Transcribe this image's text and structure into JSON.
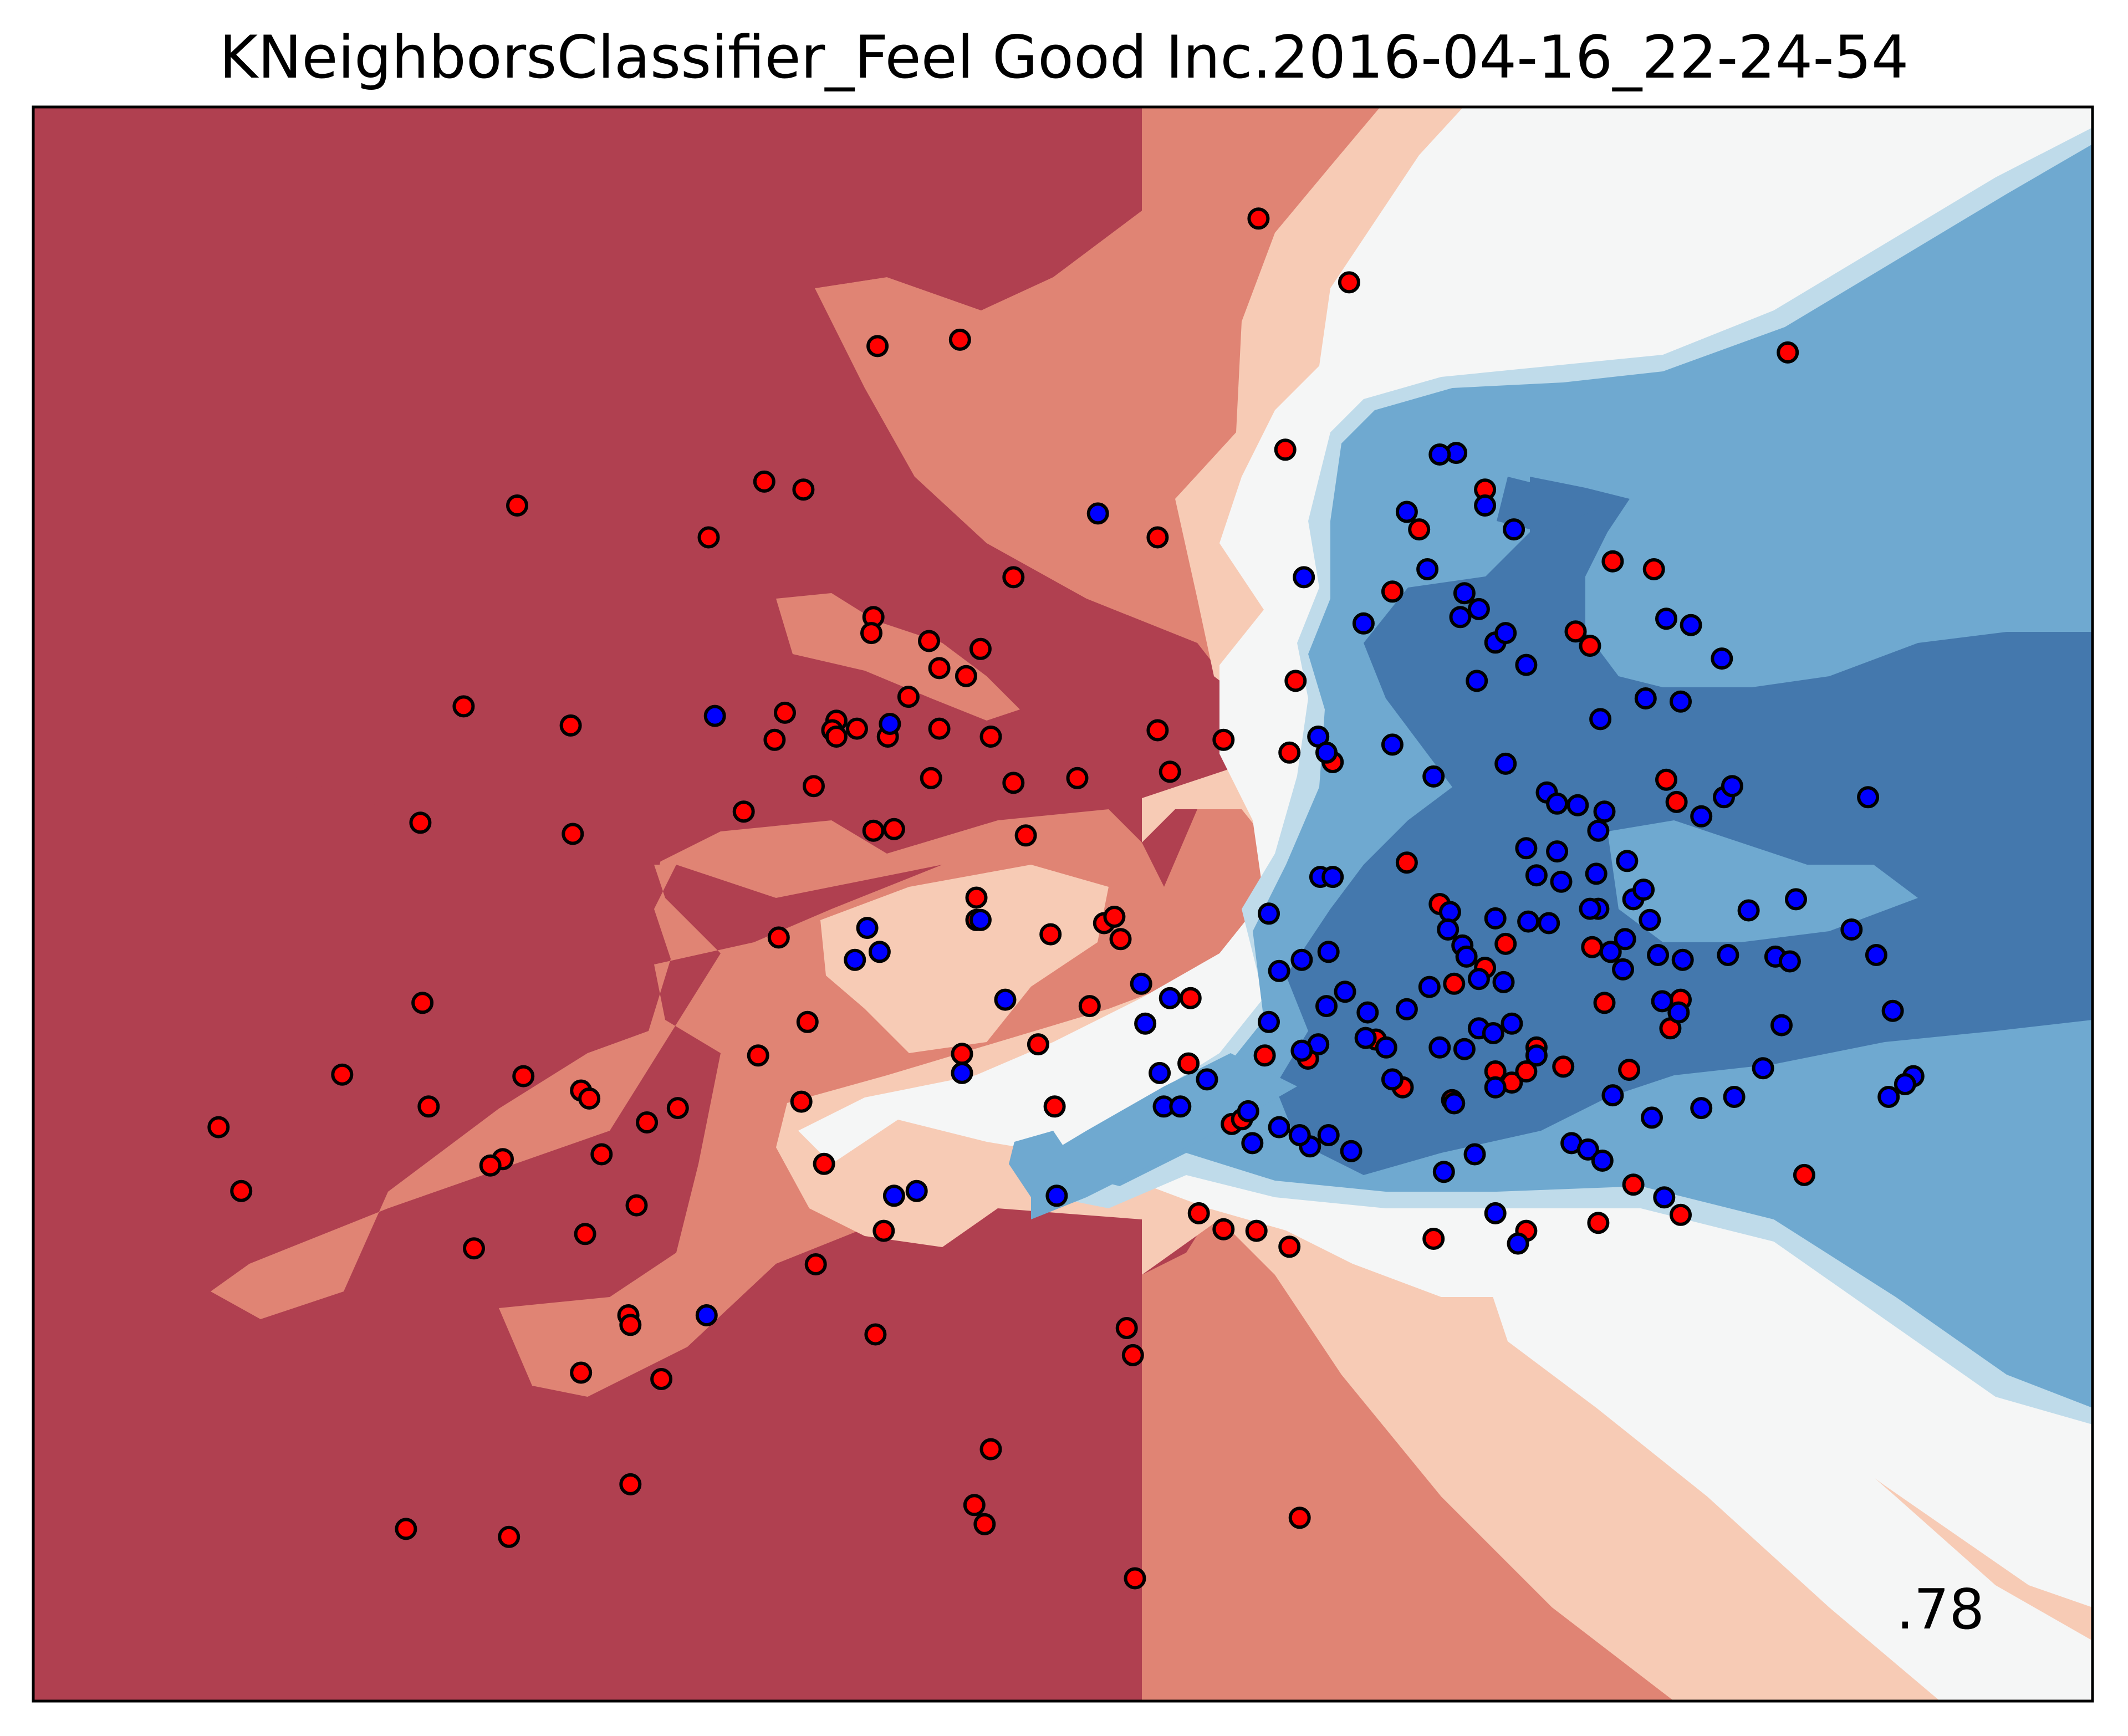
{
  "chart_data": {
    "type": "scatter",
    "title": "KNeighborsClassifier_Feel Good Inc.2016-04-16_22-24-54",
    "xlabel": "",
    "ylabel": "",
    "xlim": [
      0,
      100
    ],
    "ylim": [
      0,
      100
    ],
    "ticks_shown": false,
    "grid": false,
    "annotation": ".78",
    "annotation_position": "bottom-right",
    "colors": {
      "region_dark_red": "#b04050",
      "region_red": "#e08474",
      "region_light_red": "#f7cbb5",
      "region_white": "#f5f6f6",
      "region_light_blue": "#bfdbea",
      "region_mid_blue": "#6fa9d0",
      "region_dark_blue": "#4478ad",
      "point_red": "#ff0000",
      "point_blue": "#0000ff",
      "point_edge": "#000000"
    },
    "series": [
      {
        "color": "red",
        "points": [
          [
            59.5,
            93.0
          ],
          [
            63.9,
            89.0
          ],
          [
            45.0,
            85.4
          ],
          [
            41.0,
            85.0
          ],
          [
            35.5,
            76.5
          ],
          [
            37.4,
            76.0
          ],
          [
            23.5,
            75.0
          ],
          [
            32.8,
            73.0
          ],
          [
            54.6,
            73.0
          ],
          [
            47.6,
            70.5
          ],
          [
            40.8,
            68.0
          ],
          [
            40.7,
            67.0
          ],
          [
            43.5,
            66.5
          ],
          [
            46.0,
            66.0
          ],
          [
            44.0,
            64.8
          ],
          [
            45.3,
            64.3
          ],
          [
            42.5,
            63.0
          ],
          [
            39.0,
            61.5
          ],
          [
            36.5,
            62.0
          ],
          [
            38.8,
            60.9
          ],
          [
            39.0,
            60.5
          ],
          [
            40.0,
            61.0
          ],
          [
            41.5,
            60.5
          ],
          [
            44.0,
            61.0
          ],
          [
            46.5,
            60.5
          ],
          [
            36.0,
            60.3
          ],
          [
            26.1,
            61.2
          ],
          [
            20.9,
            62.4
          ],
          [
            54.6,
            60.9
          ],
          [
            43.6,
            57.9
          ],
          [
            47.6,
            57.6
          ],
          [
            50.7,
            57.9
          ],
          [
            55.2,
            58.3
          ],
          [
            37.9,
            57.4
          ],
          [
            34.5,
            55.8
          ],
          [
            18.8,
            55.1
          ],
          [
            26.2,
            54.4
          ],
          [
            40.8,
            54.6
          ],
          [
            41.8,
            54.7
          ],
          [
            48.2,
            54.3
          ],
          [
            45.8,
            50.4
          ],
          [
            45.8,
            49.0
          ],
          [
            49.4,
            48.1
          ],
          [
            52.0,
            48.8
          ],
          [
            52.5,
            49.2
          ],
          [
            52.8,
            47.8
          ],
          [
            36.2,
            47.9
          ],
          [
            18.9,
            43.8
          ],
          [
            37.6,
            42.6
          ],
          [
            56.2,
            44.1
          ],
          [
            51.3,
            43.6
          ],
          [
            45.1,
            40.6
          ],
          [
            48.8,
            41.2
          ],
          [
            15.0,
            39.3
          ],
          [
            23.8,
            39.2
          ],
          [
            26.6,
            38.3
          ],
          [
            19.2,
            37.3
          ],
          [
            35.2,
            40.5
          ],
          [
            56.1,
            40.0
          ],
          [
            61.9,
            40.3
          ],
          [
            27.0,
            37.8
          ],
          [
            29.8,
            36.3
          ],
          [
            31.3,
            37.2
          ],
          [
            37.3,
            37.6
          ],
          [
            49.6,
            37.3
          ],
          [
            58.2,
            36.2
          ],
          [
            9.0,
            36.0
          ],
          [
            22.8,
            34.0
          ],
          [
            22.2,
            33.6
          ],
          [
            27.6,
            34.3
          ],
          [
            58.7,
            36.5
          ],
          [
            38.4,
            33.7
          ],
          [
            10.1,
            32.0
          ],
          [
            29.3,
            31.1
          ],
          [
            26.8,
            29.3
          ],
          [
            21.4,
            28.4
          ],
          [
            41.3,
            29.5
          ],
          [
            59.4,
            29.5
          ],
          [
            38.0,
            27.4
          ],
          [
            28.9,
            24.2
          ],
          [
            29.0,
            23.6
          ],
          [
            40.9,
            23.0
          ],
          [
            53.1,
            23.4
          ],
          [
            53.4,
            21.7
          ],
          [
            26.6,
            20.6
          ],
          [
            30.5,
            20.2
          ],
          [
            46.5,
            15.8
          ],
          [
            29.0,
            13.6
          ],
          [
            18.1,
            10.8
          ],
          [
            23.1,
            10.3
          ],
          [
            45.7,
            12.3
          ],
          [
            46.2,
            11.1
          ],
          [
            61.5,
            11.5
          ],
          [
            53.5,
            7.7
          ],
          [
            60.8,
            78.5
          ],
          [
            61.3,
            64.0
          ],
          [
            57.8,
            60.3
          ],
          [
            61.0,
            59.5
          ],
          [
            63.1,
            58.9
          ],
          [
            66.7,
            52.6
          ],
          [
            68.3,
            50.0
          ],
          [
            71.5,
            47.5
          ],
          [
            70.5,
            46.0
          ],
          [
            69.0,
            45.0
          ],
          [
            73.0,
            41.0
          ],
          [
            71.0,
            39.5
          ],
          [
            74.3,
            39.8
          ],
          [
            71.8,
            38.8
          ],
          [
            80.0,
            44.0
          ],
          [
            79.3,
            57.8
          ],
          [
            79.8,
            56.4
          ],
          [
            59.8,
            40.5
          ],
          [
            66.5,
            38.5
          ],
          [
            65.2,
            41.5
          ],
          [
            66.0,
            69.6
          ],
          [
            67.3,
            73.5
          ],
          [
            70.5,
            76.0
          ],
          [
            76.7,
            71.5
          ],
          [
            78.7,
            71.0
          ],
          [
            85.2,
            84.6
          ],
          [
            74.9,
            67.1
          ],
          [
            75.6,
            66.2
          ],
          [
            75.7,
            47.3
          ],
          [
            76.3,
            43.8
          ],
          [
            79.5,
            42.2
          ],
          [
            77.5,
            39.6
          ],
          [
            77.7,
            32.4
          ],
          [
            68.9,
            37.7
          ],
          [
            72.5,
            29.5
          ],
          [
            76.0,
            30.0
          ],
          [
            80.0,
            30.5
          ],
          [
            68.0,
            29.0
          ],
          [
            72.5,
            39.5
          ],
          [
            86.0,
            33.0
          ],
          [
            61.0,
            28.5
          ],
          [
            57.8,
            29.6
          ],
          [
            56.6,
            30.6
          ]
        ]
      },
      {
        "color": "blue",
        "points": [
          [
            69.1,
            78.3
          ],
          [
            70.5,
            75.0
          ],
          [
            68.3,
            78.2
          ],
          [
            66.7,
            74.6
          ],
          [
            71.9,
            73.5
          ],
          [
            67.7,
            71.0
          ],
          [
            79.3,
            67.9
          ],
          [
            51.7,
            74.5
          ],
          [
            61.7,
            70.5
          ],
          [
            69.5,
            69.5
          ],
          [
            70.2,
            68.5
          ],
          [
            69.3,
            68.0
          ],
          [
            64.6,
            67.6
          ],
          [
            71.0,
            66.4
          ],
          [
            80.5,
            67.5
          ],
          [
            82.0,
            65.4
          ],
          [
            78.3,
            62.9
          ],
          [
            80.0,
            62.7
          ],
          [
            70.1,
            64.0
          ],
          [
            71.5,
            67.0
          ],
          [
            72.5,
            65.0
          ],
          [
            82.1,
            56.7
          ],
          [
            81.0,
            55.5
          ],
          [
            82.5,
            57.4
          ],
          [
            89.1,
            56.7
          ],
          [
            71.5,
            58.8
          ],
          [
            66.0,
            60.0
          ],
          [
            62.4,
            60.5
          ],
          [
            62.8,
            59.5
          ],
          [
            68.0,
            58.0
          ],
          [
            76.1,
            61.6
          ],
          [
            73.5,
            57.0
          ],
          [
            74.0,
            56.3
          ],
          [
            75.0,
            56.2
          ],
          [
            76.3,
            55.8
          ],
          [
            76.0,
            54.6
          ],
          [
            74.0,
            53.3
          ],
          [
            72.5,
            53.5
          ],
          [
            73.0,
            51.8
          ],
          [
            74.2,
            51.4
          ],
          [
            75.9,
            51.9
          ],
          [
            77.4,
            52.7
          ],
          [
            76.0,
            49.7
          ],
          [
            77.7,
            50.3
          ],
          [
            78.2,
            50.9
          ],
          [
            78.5,
            49.0
          ],
          [
            77.3,
            47.8
          ],
          [
            76.6,
            47.0
          ],
          [
            78.9,
            46.8
          ],
          [
            80.1,
            46.5
          ],
          [
            82.3,
            46.8
          ],
          [
            84.6,
            46.7
          ],
          [
            85.3,
            46.4
          ],
          [
            88.3,
            48.4
          ],
          [
            85.6,
            50.3
          ],
          [
            83.3,
            49.6
          ],
          [
            75.6,
            49.7
          ],
          [
            73.6,
            48.8
          ],
          [
            72.6,
            48.9
          ],
          [
            71.0,
            49.1
          ],
          [
            68.8,
            49.5
          ],
          [
            68.7,
            48.4
          ],
          [
            69.4,
            47.4
          ],
          [
            69.6,
            46.7
          ],
          [
            71.4,
            45.1
          ],
          [
            70.2,
            45.3
          ],
          [
            67.8,
            44.8
          ],
          [
            66.7,
            43.4
          ],
          [
            64.8,
            43.2
          ],
          [
            63.7,
            44.5
          ],
          [
            62.8,
            43.6
          ],
          [
            62.4,
            41.2
          ],
          [
            60.0,
            42.6
          ],
          [
            61.6,
            40.8
          ],
          [
            64.7,
            41.6
          ],
          [
            65.7,
            41.0
          ],
          [
            66.0,
            39.0
          ],
          [
            68.3,
            41.0
          ],
          [
            69.5,
            40.9
          ],
          [
            70.2,
            42.2
          ],
          [
            70.9,
            41.9
          ],
          [
            71.8,
            42.5
          ],
          [
            69.0,
            37.5
          ],
          [
            71.0,
            38.5
          ],
          [
            73.0,
            40.5
          ],
          [
            74.7,
            35.0
          ],
          [
            75.5,
            34.6
          ],
          [
            76.2,
            33.9
          ],
          [
            70.0,
            34.3
          ],
          [
            68.5,
            33.2
          ],
          [
            64.0,
            34.5
          ],
          [
            62.0,
            34.8
          ],
          [
            62.9,
            35.5
          ],
          [
            60.5,
            36.0
          ],
          [
            59.2,
            35.0
          ],
          [
            59.0,
            37.0
          ],
          [
            61.5,
            35.5
          ],
          [
            54.7,
            39.4
          ],
          [
            54.0,
            42.5
          ],
          [
            55.2,
            44.1
          ],
          [
            53.8,
            45.0
          ],
          [
            47.2,
            44.0
          ],
          [
            41.1,
            47.0
          ],
          [
            39.9,
            46.5
          ],
          [
            33.1,
            61.8
          ],
          [
            41.6,
            61.3
          ],
          [
            62.9,
            47.0
          ],
          [
            61.6,
            46.5
          ],
          [
            60.5,
            45.8
          ],
          [
            54.9,
            37.3
          ],
          [
            55.7,
            37.3
          ],
          [
            77.2,
            45.9
          ],
          [
            79.9,
            43.2
          ],
          [
            79.1,
            43.9
          ],
          [
            84.9,
            42.4
          ],
          [
            89.5,
            46.8
          ],
          [
            90.3,
            43.3
          ],
          [
            91.3,
            39.2
          ],
          [
            84.0,
            39.7
          ],
          [
            82.6,
            37.9
          ],
          [
            76.7,
            38.0
          ],
          [
            78.6,
            36.6
          ],
          [
            81.0,
            37.2
          ],
          [
            90.9,
            38.7
          ],
          [
            90.1,
            37.9
          ],
          [
            79.2,
            31.6
          ],
          [
            72.1,
            28.7
          ],
          [
            71.0,
            30.6
          ],
          [
            60.0,
            49.4
          ],
          [
            62.5,
            51.7
          ],
          [
            63.1,
            51.7
          ],
          [
            57.0,
            39.0
          ],
          [
            49.7,
            31.7
          ],
          [
            42.9,
            32.0
          ],
          [
            41.8,
            31.7
          ],
          [
            45.1,
            39.4
          ],
          [
            32.7,
            24.2
          ],
          [
            40.5,
            48.5
          ],
          [
            46.0,
            49.0
          ]
        ]
      }
    ]
  }
}
